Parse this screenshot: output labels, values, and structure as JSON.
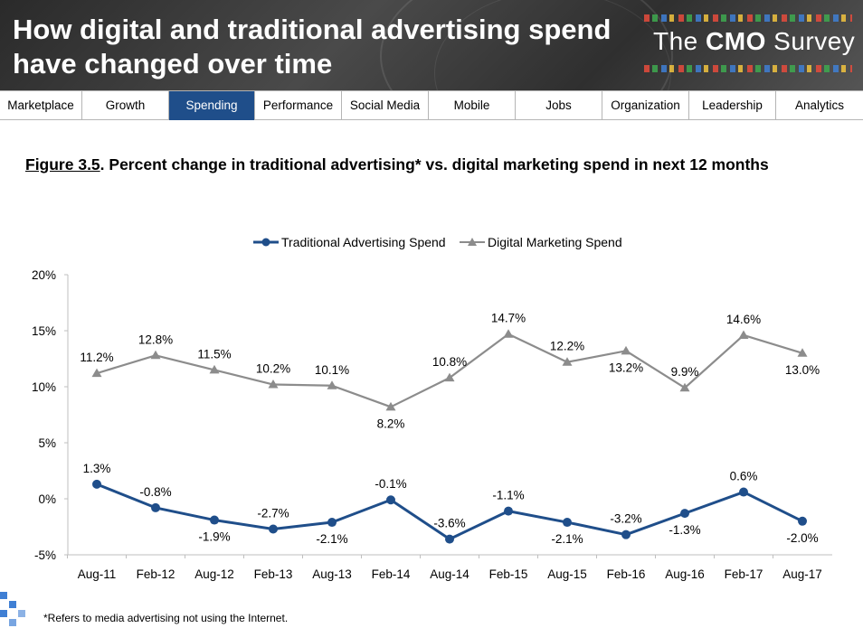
{
  "header": {
    "title": "How digital and traditional advertising spend have changed over time",
    "brand_prefix": "The ",
    "brand_bold": "CMO",
    "brand_suffix": " Survey"
  },
  "nav": {
    "items": [
      {
        "label": "Marketplace",
        "active": false
      },
      {
        "label": "Growth",
        "active": false
      },
      {
        "label": "Spending",
        "active": true
      },
      {
        "label": "Performance",
        "active": false
      },
      {
        "label": "Social Media",
        "active": false
      },
      {
        "label": "Mobile",
        "active": false
      },
      {
        "label": "Jobs",
        "active": false
      },
      {
        "label": "Organization",
        "active": false
      },
      {
        "label": "Leadership",
        "active": false
      },
      {
        "label": "Analytics",
        "active": false
      }
    ],
    "active_color": "#1f4e8a"
  },
  "figure": {
    "number": "Figure 3.5",
    "caption": ".  Percent change in traditional advertising* vs. digital marketing spend in next 12 months"
  },
  "footnote": "*Refers to media advertising not using the Internet.",
  "chart_data": {
    "type": "line",
    "categories": [
      "Aug-11",
      "Feb-12",
      "Aug-12",
      "Feb-13",
      "Aug-13",
      "Feb-14",
      "Aug-14",
      "Feb-15",
      "Aug-15",
      "Feb-16",
      "Aug-16",
      "Feb-17",
      "Aug-17"
    ],
    "series": [
      {
        "name": "Traditional Advertising Spend",
        "color": "#1f4e8a",
        "marker": "circle",
        "values": [
          1.3,
          -0.8,
          -1.9,
          -2.7,
          -2.1,
          -0.1,
          -3.6,
          -1.1,
          -2.1,
          -3.2,
          -1.3,
          0.6,
          -2.0
        ],
        "labels": [
          "1.3%",
          "-0.8%",
          "-1.9%",
          "-2.7%",
          "-2.1%",
          "-0.1%",
          "-3.6%",
          "-1.1%",
          "-2.1%",
          "-3.2%",
          "-1.3%",
          "0.6%",
          "-2.0%"
        ]
      },
      {
        "name": "Digital Marketing Spend",
        "color": "#8c8c8c",
        "marker": "triangle",
        "values": [
          11.2,
          12.8,
          11.5,
          10.2,
          10.1,
          8.2,
          10.8,
          14.7,
          12.2,
          13.2,
          9.9,
          14.6,
          13.0
        ],
        "labels": [
          "11.2%",
          "12.8%",
          "11.5%",
          "10.2%",
          "10.1%",
          "8.2%",
          "10.8%",
          "14.7%",
          "12.2%",
          "13.2%",
          "9.9%",
          "14.6%",
          "13.0%"
        ]
      }
    ],
    "yticks": [
      "20%",
      "15%",
      "10%",
      "5%",
      "0%",
      "-5%"
    ],
    "ytick_values": [
      20,
      15,
      10,
      5,
      0,
      -5
    ],
    "ylim": [
      -5,
      20
    ],
    "legend_position": "top",
    "grid": false
  }
}
